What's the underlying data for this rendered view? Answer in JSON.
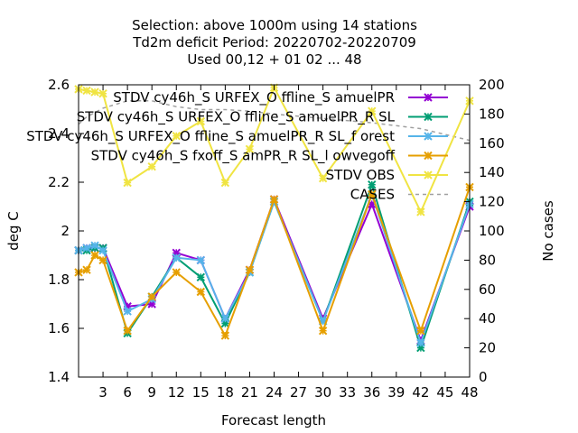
{
  "chart_data": {
    "type": "line",
    "title_lines": [
      "Selection: above 1000m using    14 stations",
      "Td2m deficit   Period: 20220702-20220709",
      "Used  00,12  + 01 02 ... 48"
    ],
    "xlabel": "Forecast length",
    "ylabel": "deg C",
    "y2label": "No cases",
    "xlim": [
      0,
      48
    ],
    "ylim": [
      1.4,
      2.6
    ],
    "y2lim": [
      0,
      200
    ],
    "xticks": [
      "3",
      "6",
      "9",
      "12",
      "15",
      "18",
      "21",
      "24",
      "27",
      "30",
      "33",
      "36",
      "39",
      "42",
      "45",
      "48"
    ],
    "yticks": [
      "1.4",
      "1.6",
      "1.8",
      "2",
      "2.2",
      "2.4",
      "2.6"
    ],
    "y2ticks": [
      "0",
      "20",
      "40",
      "60",
      "80",
      "100",
      "120",
      "140",
      "160",
      "180",
      "200"
    ],
    "legend_position": "top-right",
    "x": [
      0,
      1,
      2,
      3,
      6,
      9,
      12,
      15,
      18,
      21,
      24,
      30,
      36,
      42,
      48
    ],
    "series": [
      {
        "name": "STDV cy46h_S URFEX_O ffline_S amuelPR",
        "color": "#9400d3",
        "marker": "x",
        "axis": "y",
        "values": [
          1.92,
          1.93,
          1.93,
          1.93,
          1.69,
          1.7,
          1.91,
          1.88,
          1.64,
          1.84,
          2.13,
          1.64,
          2.11,
          1.55,
          2.1
        ]
      },
      {
        "name": "STDV cy46h_S URFEX_O ffline_S amuelPR_R SL",
        "color": "#009e73",
        "marker": "x",
        "axis": "y",
        "values": [
          1.92,
          1.92,
          1.93,
          1.93,
          1.58,
          1.73,
          1.89,
          1.81,
          1.62,
          1.83,
          2.12,
          1.63,
          2.19,
          1.52,
          2.12
        ]
      },
      {
        "name": "STDV cy46h_S URFEX_O ffline_S amuelPR_R SL_f orest",
        "color": "#56b4e9",
        "marker": "x",
        "axis": "y",
        "values": [
          1.92,
          1.93,
          1.94,
          1.92,
          1.67,
          1.72,
          1.89,
          1.88,
          1.64,
          1.83,
          2.12,
          1.63,
          2.15,
          1.54,
          2.11
        ]
      },
      {
        "name": "STDV cy46h_S fxoff_S amPR_R SL_l owvegoff",
        "color": "#e69f00",
        "marker": "x",
        "axis": "y",
        "values": [
          1.83,
          1.84,
          1.9,
          1.88,
          1.59,
          1.73,
          1.83,
          1.75,
          1.57,
          1.84,
          2.13,
          1.59,
          2.15,
          1.59,
          2.18
        ]
      },
      {
        "name": "STDV OBS",
        "color": "#f0e442",
        "marker": "x",
        "axis": "y2",
        "values": [
          197,
          196,
          195,
          194,
          133,
          144,
          165,
          175,
          133,
          156,
          198,
          136,
          182,
          113,
          189
        ]
      },
      {
        "name": "CASES",
        "color": "#a0a0a0",
        "marker": "none",
        "dash": true,
        "axis": "y2",
        "values": [
          173,
          178,
          181,
          184,
          189,
          189,
          185,
          183,
          183,
          182,
          180,
          177,
          174,
          170,
          162
        ]
      }
    ]
  }
}
